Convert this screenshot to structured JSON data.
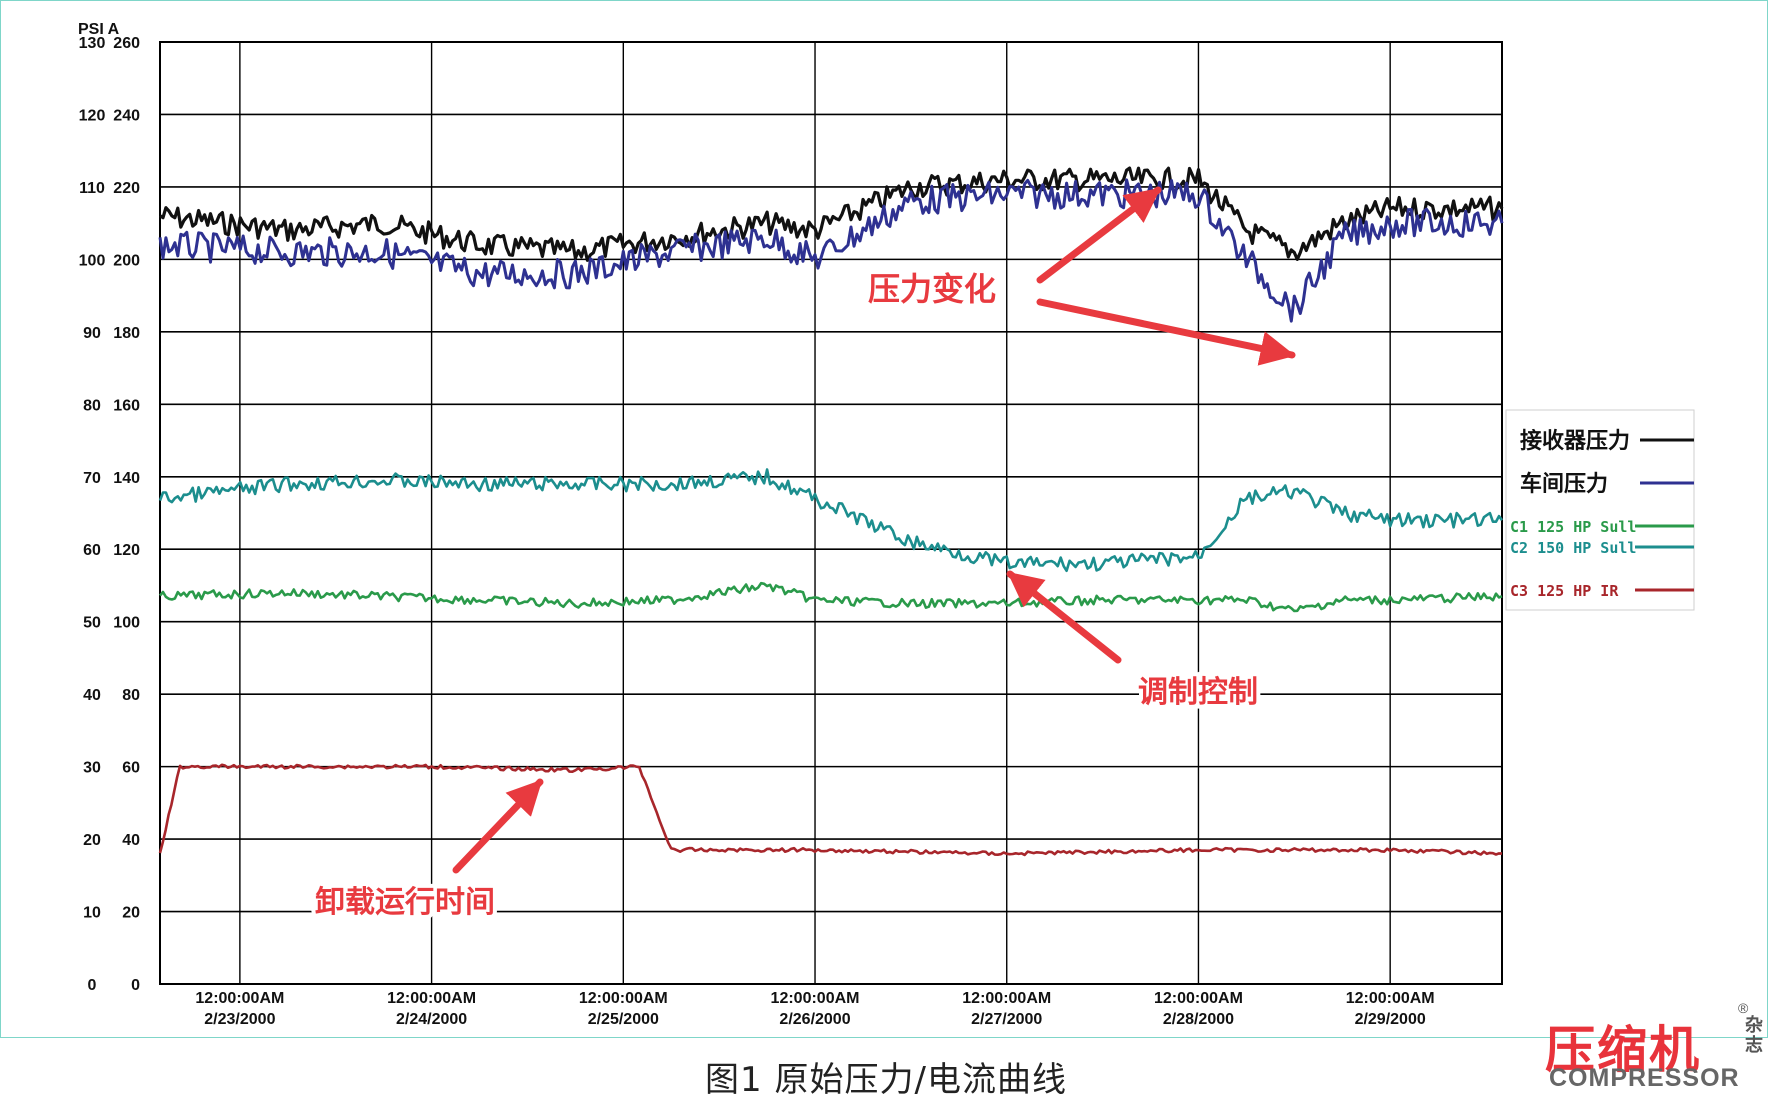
{
  "chart_data": {
    "type": "line",
    "units": {
      "pressure": "PSI",
      "current": "A"
    },
    "units_label": "PSI A",
    "y_ticks_psi": [
      0,
      10,
      20,
      30,
      40,
      50,
      60,
      70,
      80,
      90,
      100,
      110,
      120,
      130
    ],
    "y_ticks_amps": [
      0,
      20,
      40,
      60,
      80,
      100,
      120,
      140,
      160,
      180,
      200,
      220,
      240,
      260
    ],
    "ylim_psi": [
      0,
      130
    ],
    "xlim": [
      "2/22/2000 14:00",
      "2/29/2000 14:00"
    ],
    "x_ticks": [
      {
        "time": "12:00:00AM",
        "date": "2/23/2000"
      },
      {
        "time": "12:00:00AM",
        "date": "2/24/2000"
      },
      {
        "time": "12:00:00AM",
        "date": "2/25/2000"
      },
      {
        "time": "12:00:00AM",
        "date": "2/26/2000"
      },
      {
        "time": "12:00:00AM",
        "date": "2/27/2000"
      },
      {
        "time": "12:00:00AM",
        "date": "2/28/2000"
      },
      {
        "time": "12:00:00AM",
        "date": "2/29/2000"
      }
    ],
    "grid": true,
    "legend_position": "right",
    "series": [
      {
        "name": "接收器压力",
        "color": "#111111",
        "x": [
          "2/22/2000 14:00",
          "2/23/2000 06:00",
          "2/23/2000 18:00",
          "2/24/2000 06:00",
          "2/24/2000 18:00",
          "2/25/2000 06:00",
          "2/25/2000 18:00",
          "2/26/2000 00:00",
          "2/26/2000 12:00",
          "2/27/2000 00:00",
          "2/27/2000 12:00",
          "2/28/2000 00:00",
          "2/28/2000 06:00",
          "2/28/2000 12:00",
          "2/28/2000 18:00",
          "2/29/2000 00:00",
          "2/29/2000 14:00"
        ],
        "values": [
          106,
          104,
          105,
          102,
          101,
          103,
          105,
          104,
          110,
          111,
          111,
          111,
          104,
          101,
          105,
          107,
          107
        ]
      },
      {
        "name": "车间压力",
        "color": "#2e3191",
        "x": [
          "2/22/2000 14:00",
          "2/23/2000 06:00",
          "2/23/2000 18:00",
          "2/24/2000 06:00",
          "2/24/2000 18:00",
          "2/25/2000 06:00",
          "2/25/2000 18:00",
          "2/26/2000 00:00",
          "2/26/2000 12:00",
          "2/27/2000 00:00",
          "2/27/2000 12:00",
          "2/28/2000 00:00",
          "2/28/2000 06:00",
          "2/28/2000 12:00",
          "2/28/2000 18:00",
          "2/29/2000 00:00",
          "2/29/2000 14:00"
        ],
        "values": [
          102,
          101,
          101,
          98,
          98,
          101,
          103,
          100,
          108,
          109,
          109,
          109,
          100,
          93,
          103,
          105,
          105
        ]
      },
      {
        "name": "C1 125 HP Sull",
        "color": "#2a9a4a",
        "x": [
          "2/22/2000 14:00",
          "2/23/2000 06:00",
          "2/23/2000 18:00",
          "2/24/2000 06:00",
          "2/24/2000 18:00",
          "2/25/2000 06:00",
          "2/25/2000 18:00",
          "2/26/2000 00:00",
          "2/26/2000 12:00",
          "2/27/2000 00:00",
          "2/27/2000 12:00",
          "2/28/2000 00:00",
          "2/28/2000 06:00",
          "2/28/2000 12:00",
          "2/28/2000 18:00",
          "2/29/2000 00:00",
          "2/29/2000 14:00"
        ],
        "values": [
          53.5,
          54,
          53.5,
          53,
          52.5,
          53,
          55,
          53,
          52.5,
          52.5,
          53,
          53,
          53,
          51.5,
          53,
          53,
          53.5
        ]
      },
      {
        "name": "C2 150 HP Sull",
        "color": "#1c8e8e",
        "x": [
          "2/22/2000 14:00",
          "2/23/2000 06:00",
          "2/23/2000 18:00",
          "2/24/2000 06:00",
          "2/24/2000 18:00",
          "2/25/2000 06:00",
          "2/25/2000 18:00",
          "2/26/2000 00:00",
          "2/26/2000 12:00",
          "2/27/2000 00:00",
          "2/27/2000 12:00",
          "2/28/2000 00:00",
          "2/28/2000 06:00",
          "2/28/2000 12:00",
          "2/28/2000 18:00",
          "2/29/2000 00:00",
          "2/29/2000 14:00"
        ],
        "values": [
          67,
          69,
          69.5,
          69,
          69,
          69,
          70,
          67,
          61,
          58,
          58,
          59,
          67,
          68,
          65,
          64,
          64
        ]
      },
      {
        "name": "C3 125 HP IR",
        "color": "#a8262b",
        "x": [
          "2/22/2000 14:00",
          "2/22/2000 16:30",
          "2/23/2000 06:00",
          "2/24/2000 00:00",
          "2/24/2000 18:00",
          "2/25/2000 02:00",
          "2/25/2000 06:00",
          "2/26/2000 00:00",
          "2/27/2000 00:00",
          "2/28/2000 00:00",
          "2/29/2000 00:00",
          "2/29/2000 14:00"
        ],
        "values": [
          18,
          30,
          30,
          30,
          29.5,
          30,
          18.5,
          18.5,
          18,
          18.5,
          18.5,
          18
        ]
      }
    ],
    "annotations": [
      {
        "text": "压力变化"
      },
      {
        "text": "调制控制"
      },
      {
        "text": "卸载运行时间"
      }
    ]
  },
  "caption": "图1  原始压力/电流曲线",
  "brand": {
    "cn": "压缩机",
    "en": "COMPRESSOR",
    "mag": "杂志",
    "reg": "®"
  },
  "colors": {
    "annotation": "#e83a3f",
    "grid": "#000000",
    "frame": "#7fd6c9",
    "brand": "#e8333b"
  }
}
